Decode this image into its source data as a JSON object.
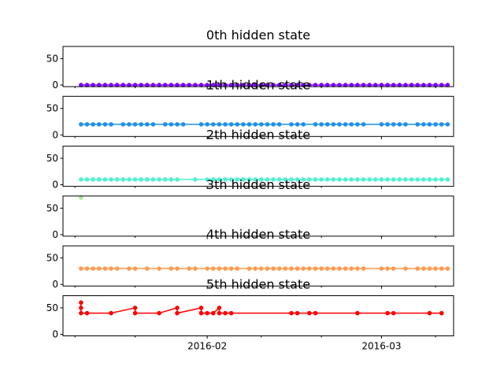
{
  "chart_data": {
    "type": "line",
    "x_axis": {
      "type": "date",
      "range": [
        "2016-01-08",
        "2016-03-13"
      ],
      "major_ticks": [
        "2016-02-01",
        "2016-03-01"
      ],
      "major_tick_labels": [
        "2016-02",
        "2016-03"
      ],
      "minor_ticks": [
        "2016-01-10",
        "2016-01-20",
        "2016-02-10",
        "2016-02-20",
        "2016-03-10"
      ]
    },
    "y_axis": {
      "ylim": [
        -3,
        73
      ],
      "ticks": [
        0,
        50
      ],
      "tick_labels": [
        "0",
        "50"
      ]
    },
    "grid": false,
    "legend": "none",
    "subplots": [
      {
        "title": "0th hidden state",
        "color": "#7f00ff",
        "points": [
          [
            "2016-01-11",
            0
          ],
          [
            "2016-01-12",
            0
          ],
          [
            "2016-01-13",
            0
          ],
          [
            "2016-01-14",
            0
          ],
          [
            "2016-01-15",
            0
          ],
          [
            "2016-01-16",
            0
          ],
          [
            "2016-01-17",
            0
          ],
          [
            "2016-01-18",
            0
          ],
          [
            "2016-01-19",
            0
          ],
          [
            "2016-01-20",
            0
          ],
          [
            "2016-01-21",
            0
          ],
          [
            "2016-01-22",
            0
          ],
          [
            "2016-01-23",
            0
          ],
          [
            "2016-01-24",
            0
          ],
          [
            "2016-01-25",
            0
          ],
          [
            "2016-01-26",
            0
          ],
          [
            "2016-01-27",
            0
          ],
          [
            "2016-01-28",
            0
          ],
          [
            "2016-01-29",
            0
          ],
          [
            "2016-01-30",
            0
          ],
          [
            "2016-01-31",
            0
          ],
          [
            "2016-02-01",
            0
          ],
          [
            "2016-02-02",
            0
          ],
          [
            "2016-02-03",
            0
          ],
          [
            "2016-02-04",
            0
          ],
          [
            "2016-02-05",
            0
          ],
          [
            "2016-02-06",
            0
          ],
          [
            "2016-02-07",
            0
          ],
          [
            "2016-02-08",
            0
          ],
          [
            "2016-02-09",
            0
          ],
          [
            "2016-02-10",
            0
          ],
          [
            "2016-02-11",
            0
          ],
          [
            "2016-02-12",
            0
          ],
          [
            "2016-02-13",
            0
          ],
          [
            "2016-02-14",
            0
          ],
          [
            "2016-02-15",
            0
          ],
          [
            "2016-02-16",
            0
          ],
          [
            "2016-02-17",
            0
          ],
          [
            "2016-02-18",
            0
          ],
          [
            "2016-02-19",
            0
          ],
          [
            "2016-02-20",
            0
          ],
          [
            "2016-02-21",
            0
          ],
          [
            "2016-02-22",
            0
          ],
          [
            "2016-02-23",
            0
          ],
          [
            "2016-02-24",
            0
          ],
          [
            "2016-02-25",
            0
          ],
          [
            "2016-02-26",
            0
          ],
          [
            "2016-02-27",
            0
          ],
          [
            "2016-02-28",
            0
          ],
          [
            "2016-02-29",
            0
          ],
          [
            "2016-03-01",
            0
          ],
          [
            "2016-03-02",
            0
          ],
          [
            "2016-03-03",
            0
          ],
          [
            "2016-03-04",
            0
          ],
          [
            "2016-03-05",
            0
          ],
          [
            "2016-03-06",
            0
          ],
          [
            "2016-03-07",
            0
          ],
          [
            "2016-03-08",
            0
          ],
          [
            "2016-03-09",
            0
          ],
          [
            "2016-03-10",
            0
          ],
          [
            "2016-03-11",
            0
          ],
          [
            "2016-03-12",
            0
          ]
        ]
      },
      {
        "title": "1th hidden state",
        "color": "#1e90e8",
        "points": [
          [
            "2016-01-11",
            20
          ],
          [
            "2016-01-12",
            20
          ],
          [
            "2016-01-13",
            20
          ],
          [
            "2016-01-14",
            20
          ],
          [
            "2016-01-15",
            20
          ],
          [
            "2016-01-16",
            20
          ],
          [
            "2016-01-18",
            20
          ],
          [
            "2016-01-19",
            20
          ],
          [
            "2016-01-20",
            20
          ],
          [
            "2016-01-21",
            20
          ],
          [
            "2016-01-22",
            20
          ],
          [
            "2016-01-23",
            20
          ],
          [
            "2016-01-25",
            20
          ],
          [
            "2016-01-26",
            20
          ],
          [
            "2016-01-27",
            20
          ],
          [
            "2016-01-28",
            20
          ],
          [
            "2016-01-31",
            20
          ],
          [
            "2016-02-01",
            20
          ],
          [
            "2016-02-02",
            20
          ],
          [
            "2016-02-03",
            20
          ],
          [
            "2016-02-04",
            20
          ],
          [
            "2016-02-05",
            20
          ],
          [
            "2016-02-06",
            20
          ],
          [
            "2016-02-07",
            20
          ],
          [
            "2016-02-08",
            20
          ],
          [
            "2016-02-09",
            20
          ],
          [
            "2016-02-10",
            20
          ],
          [
            "2016-02-11",
            20
          ],
          [
            "2016-02-12",
            20
          ],
          [
            "2016-02-13",
            20
          ],
          [
            "2016-02-15",
            20
          ],
          [
            "2016-02-16",
            20
          ],
          [
            "2016-02-17",
            20
          ],
          [
            "2016-02-19",
            20
          ],
          [
            "2016-02-20",
            20
          ],
          [
            "2016-02-21",
            20
          ],
          [
            "2016-02-22",
            20
          ],
          [
            "2016-02-23",
            20
          ],
          [
            "2016-02-24",
            20
          ],
          [
            "2016-02-25",
            20
          ],
          [
            "2016-02-26",
            20
          ],
          [
            "2016-02-27",
            20
          ],
          [
            "2016-03-01",
            20
          ],
          [
            "2016-03-02",
            20
          ],
          [
            "2016-03-03",
            20
          ],
          [
            "2016-03-04",
            20
          ],
          [
            "2016-03-05",
            20
          ],
          [
            "2016-03-07",
            20
          ],
          [
            "2016-03-08",
            20
          ],
          [
            "2016-03-09",
            20
          ],
          [
            "2016-03-10",
            20
          ],
          [
            "2016-03-11",
            20
          ],
          [
            "2016-03-12",
            20
          ]
        ]
      },
      {
        "title": "2th hidden state",
        "color": "#4ff0d0",
        "points": [
          [
            "2016-01-11",
            10
          ],
          [
            "2016-01-12",
            10
          ],
          [
            "2016-01-13",
            10
          ],
          [
            "2016-01-14",
            10
          ],
          [
            "2016-01-15",
            10
          ],
          [
            "2016-01-16",
            10
          ],
          [
            "2016-01-17",
            10
          ],
          [
            "2016-01-18",
            10
          ],
          [
            "2016-01-19",
            10
          ],
          [
            "2016-01-20",
            10
          ],
          [
            "2016-01-21",
            10
          ],
          [
            "2016-01-22",
            10
          ],
          [
            "2016-01-23",
            10
          ],
          [
            "2016-01-24",
            10
          ],
          [
            "2016-01-25",
            10
          ],
          [
            "2016-01-26",
            10
          ],
          [
            "2016-01-27",
            10
          ],
          [
            "2016-01-30",
            10
          ],
          [
            "2016-02-01",
            10
          ],
          [
            "2016-02-02",
            10
          ],
          [
            "2016-02-03",
            10
          ],
          [
            "2016-02-04",
            10
          ],
          [
            "2016-02-05",
            10
          ],
          [
            "2016-02-06",
            10
          ],
          [
            "2016-02-07",
            10
          ],
          [
            "2016-02-08",
            10
          ],
          [
            "2016-02-09",
            10
          ],
          [
            "2016-02-10",
            10
          ],
          [
            "2016-02-11",
            10
          ],
          [
            "2016-02-12",
            10
          ],
          [
            "2016-02-13",
            10
          ],
          [
            "2016-02-14",
            10
          ],
          [
            "2016-02-15",
            10
          ],
          [
            "2016-02-16",
            10
          ],
          [
            "2016-02-17",
            10
          ],
          [
            "2016-02-18",
            10
          ],
          [
            "2016-02-19",
            10
          ],
          [
            "2016-02-20",
            10
          ],
          [
            "2016-02-21",
            10
          ],
          [
            "2016-02-22",
            10
          ],
          [
            "2016-02-23",
            10
          ],
          [
            "2016-02-24",
            10
          ],
          [
            "2016-02-25",
            10
          ],
          [
            "2016-02-26",
            10
          ],
          [
            "2016-02-27",
            10
          ],
          [
            "2016-02-28",
            10
          ],
          [
            "2016-02-29",
            10
          ],
          [
            "2016-03-01",
            10
          ],
          [
            "2016-03-02",
            10
          ],
          [
            "2016-03-03",
            10
          ],
          [
            "2016-03-04",
            10
          ],
          [
            "2016-03-05",
            10
          ],
          [
            "2016-03-06",
            10
          ],
          [
            "2016-03-07",
            10
          ],
          [
            "2016-03-08",
            10
          ],
          [
            "2016-03-09",
            10
          ],
          [
            "2016-03-10",
            10
          ],
          [
            "2016-03-11",
            10
          ],
          [
            "2016-03-12",
            10
          ]
        ]
      },
      {
        "title": "3th hidden state",
        "color": "#a8ee90",
        "points": [
          [
            "2016-01-11",
            70
          ]
        ]
      },
      {
        "title": "4th hidden state",
        "color": "#ff9a50",
        "points": [
          [
            "2016-01-11",
            30
          ],
          [
            "2016-01-12",
            30
          ],
          [
            "2016-01-13",
            30
          ],
          [
            "2016-01-14",
            30
          ],
          [
            "2016-01-15",
            30
          ],
          [
            "2016-01-16",
            30
          ],
          [
            "2016-01-17",
            30
          ],
          [
            "2016-01-19",
            30
          ],
          [
            "2016-01-20",
            30
          ],
          [
            "2016-01-22",
            30
          ],
          [
            "2016-01-24",
            30
          ],
          [
            "2016-01-26",
            30
          ],
          [
            "2016-01-27",
            30
          ],
          [
            "2016-01-29",
            30
          ],
          [
            "2016-01-30",
            30
          ],
          [
            "2016-02-01",
            30
          ],
          [
            "2016-02-02",
            30
          ],
          [
            "2016-02-03",
            30
          ],
          [
            "2016-02-04",
            30
          ],
          [
            "2016-02-05",
            30
          ],
          [
            "2016-02-06",
            30
          ],
          [
            "2016-02-08",
            30
          ],
          [
            "2016-02-09",
            30
          ],
          [
            "2016-02-10",
            30
          ],
          [
            "2016-02-11",
            30
          ],
          [
            "2016-02-12",
            30
          ],
          [
            "2016-02-13",
            30
          ],
          [
            "2016-02-14",
            30
          ],
          [
            "2016-02-15",
            30
          ],
          [
            "2016-02-16",
            30
          ],
          [
            "2016-02-17",
            30
          ],
          [
            "2016-02-18",
            30
          ],
          [
            "2016-02-19",
            30
          ],
          [
            "2016-02-20",
            30
          ],
          [
            "2016-02-21",
            30
          ],
          [
            "2016-02-22",
            30
          ],
          [
            "2016-02-23",
            30
          ],
          [
            "2016-02-24",
            30
          ],
          [
            "2016-02-25",
            30
          ],
          [
            "2016-02-26",
            30
          ],
          [
            "2016-02-27",
            30
          ],
          [
            "2016-03-01",
            30
          ],
          [
            "2016-03-02",
            30
          ],
          [
            "2016-03-03",
            30
          ],
          [
            "2016-03-05",
            30
          ],
          [
            "2016-03-07",
            30
          ],
          [
            "2016-03-08",
            30
          ],
          [
            "2016-03-09",
            30
          ],
          [
            "2016-03-10",
            30
          ],
          [
            "2016-03-11",
            30
          ],
          [
            "2016-03-12",
            30
          ]
        ]
      },
      {
        "title": "5th hidden state",
        "color": "#ff0000",
        "points": [
          [
            "2016-01-11",
            60
          ],
          [
            "2016-01-11",
            50
          ],
          [
            "2016-01-11",
            40
          ],
          [
            "2016-01-12",
            40
          ],
          [
            "2016-01-16",
            40
          ],
          [
            "2016-01-20",
            50
          ],
          [
            "2016-01-20",
            40
          ],
          [
            "2016-01-24",
            40
          ],
          [
            "2016-01-27",
            50
          ],
          [
            "2016-01-27",
            40
          ],
          [
            "2016-01-31",
            50
          ],
          [
            "2016-01-31",
            40
          ],
          [
            "2016-02-01",
            40
          ],
          [
            "2016-02-02",
            40
          ],
          [
            "2016-02-03",
            50
          ],
          [
            "2016-02-03",
            40
          ],
          [
            "2016-02-04",
            40
          ],
          [
            "2016-02-05",
            40
          ],
          [
            "2016-02-15",
            40
          ],
          [
            "2016-02-16",
            40
          ],
          [
            "2016-02-18",
            40
          ],
          [
            "2016-02-19",
            40
          ],
          [
            "2016-02-26",
            40
          ],
          [
            "2016-03-02",
            40
          ],
          [
            "2016-03-03",
            40
          ],
          [
            "2016-03-09",
            40
          ],
          [
            "2016-03-11",
            40
          ]
        ]
      }
    ]
  }
}
